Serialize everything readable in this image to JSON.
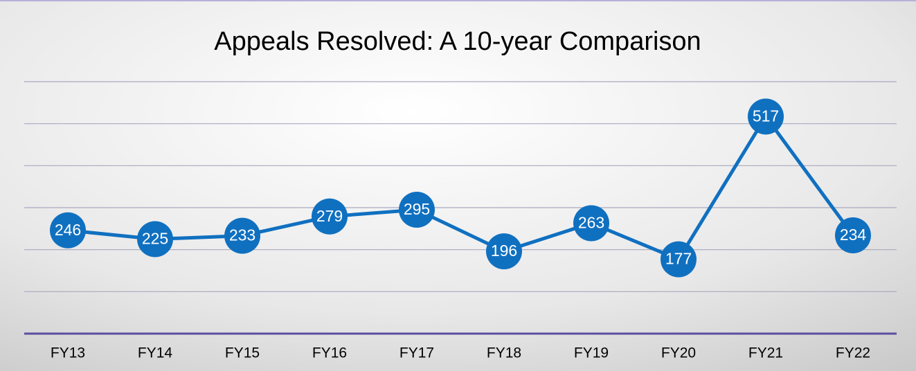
{
  "chart_data": {
    "type": "line",
    "title": "Appeals Resolved: A 10-year Comparison",
    "categories": [
      "FY13",
      "FY14",
      "FY15",
      "FY16",
      "FY17",
      "FY18",
      "FY19",
      "FY20",
      "FY21",
      "FY22"
    ],
    "series": [
      {
        "name": "Appeals Resolved",
        "color": "#1070c0",
        "values": [
          246,
          225,
          233,
          279,
          295,
          196,
          263,
          177,
          517,
          234
        ]
      }
    ],
    "ylim": [
      0,
      600
    ],
    "yticks": [
      0,
      100,
      200,
      300,
      400,
      500,
      600
    ],
    "grid": true
  }
}
